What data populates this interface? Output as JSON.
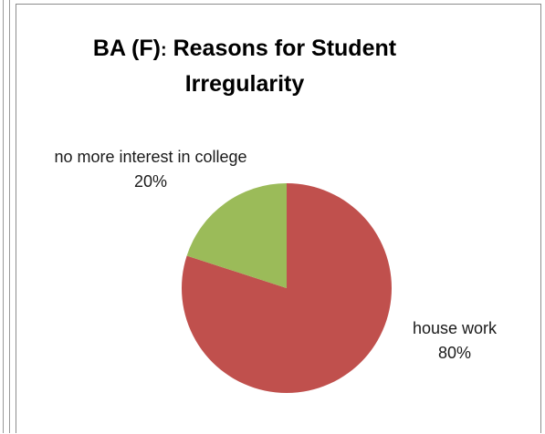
{
  "chart_data": {
    "type": "pie",
    "title_main": "BA (F)",
    "title_sep": ":",
    "title_rest": " Reasons for Student Irregularity",
    "slices": [
      {
        "label": "house work",
        "value": 80,
        "percent_label": "80%",
        "color": "#c0504d"
      },
      {
        "label": "no more interest in college",
        "value": 20,
        "percent_label": "20%",
        "color": "#9bbb59"
      }
    ],
    "start_angle": "12 o'clock",
    "direction": "clockwise"
  }
}
